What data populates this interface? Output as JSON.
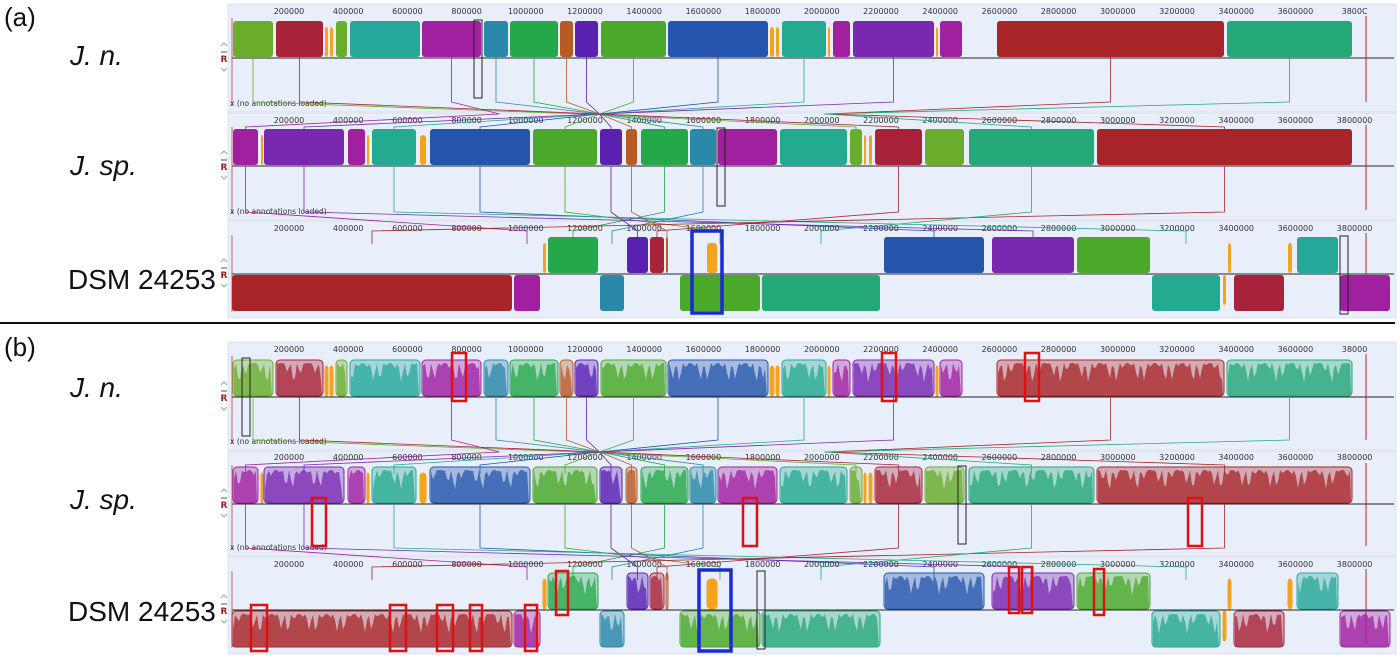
{
  "panels": [
    {
      "label": "(a)",
      "mode": "solid"
    },
    {
      "label": "(b)",
      "mode": "profile"
    }
  ],
  "genome_names": [
    "J. n.",
    "J. sp.",
    "DSM 24253"
  ],
  "italic": [
    true,
    true,
    false
  ],
  "ruler_ticks": [
    "200000",
    "400000",
    "600000",
    "800000",
    "1000000",
    "1200000",
    "1400000",
    "1600000",
    "1800000",
    "2000000",
    "2200000",
    "2400000",
    "2600000",
    "2800000",
    "3000000",
    "3200000",
    "3400000",
    "3600000",
    "3800000"
  ],
  "last_tick_truncated": "3800C",
  "last_tick_truncated_b": "38000",
  "annotation_note": "x (no annotations loaded)",
  "reverse_marker": "R",
  "colors": {
    "olive": "#6aac2c",
    "crimson": "#a8233a",
    "orange": "#f5a31c",
    "teal": "#25a89a",
    "magenta": "#a020a0",
    "steel": "#2a88a8",
    "green": "#24a84a",
    "brown": "#b85a24",
    "indigo": "#5a20b0",
    "bgreen": "#4aa82a",
    "navy": "#2555ac",
    "seafoam": "#24aa90",
    "purple": "#7a28b0",
    "darkred": "#a82428",
    "emerald": "#24a878",
    "highlight_blue": "#1a2ad0",
    "highlight_red": "#e01010",
    "panel_bg": "#e8eefa"
  }
}
